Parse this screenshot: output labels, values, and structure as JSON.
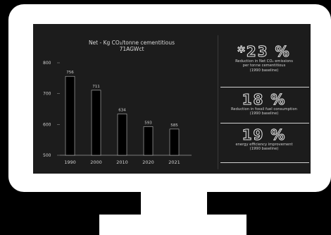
{
  "chart_data": {
    "type": "bar",
    "title": "Net - Kg CO₂/tonne cementitious",
    "subtitle": "71AGWct",
    "categories": [
      "1990",
      "2000",
      "2010",
      "2020",
      "2021"
    ],
    "values": [
      756,
      711,
      634,
      593,
      585
    ],
    "ylim": [
      500,
      800
    ],
    "yticks": [
      500,
      600,
      700,
      800
    ],
    "grid": false,
    "bar_color": "#000000",
    "bar_stroke": "#bdbdbd"
  },
  "stats": [
    {
      "value": "*23 %",
      "desc": [
        "Reduction in Net CO₂ emissions",
        "per tonne cementitious",
        "(1990 baseline)"
      ]
    },
    {
      "value": "18 %",
      "desc": [
        "Reduction in fossil fuel consumption",
        "(1990 baseline)"
      ]
    },
    {
      "value": "19 %",
      "desc": [
        "energy efficiency improvement",
        "(1990 baseline)"
      ]
    }
  ]
}
